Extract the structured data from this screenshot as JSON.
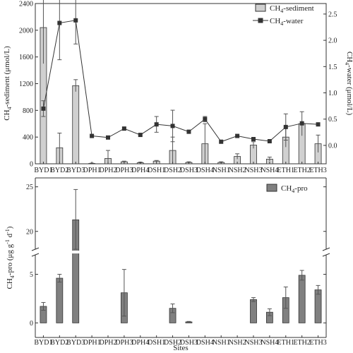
{
  "colors": {
    "sediment_bar": "#d0d0d0",
    "water_line": "#333333",
    "pro_bar": "#808080",
    "axis": "#333333"
  },
  "chart_data": [
    {
      "type": "bar",
      "categories": [
        "BYD1",
        "BYD2",
        "BYD3",
        "DPH1",
        "DPH2",
        "DPH3",
        "DPH4",
        "DSH1",
        "DSH2",
        "DSH3",
        "DSH4",
        "NSH1",
        "NSH2",
        "NSH3",
        "NSH4",
        "ETH1",
        "ETH2",
        "ETH3"
      ],
      "series": [
        {
          "name": "CH4-sediment",
          "legend_main": "CH",
          "legend_sub": "4",
          "legend_rest": "-sediment",
          "axis": "left",
          "kind": "bar",
          "values": [
            2040,
            240,
            1170,
            5,
            80,
            30,
            15,
            40,
            200,
            20,
            300,
            20,
            110,
            280,
            70,
            400,
            600,
            300
          ],
          "errors": [
            540,
            220,
            90,
            5,
            120,
            10,
            10,
            10,
            200,
            10,
            300,
            10,
            40,
            50,
            30,
            150,
            180,
            130
          ]
        },
        {
          "name": "CH4-water",
          "legend_main": "CH",
          "legend_sub": "4",
          "legend_rest": "-water",
          "axis": "right",
          "kind": "line",
          "values": [
            0.7,
            2.33,
            2.38,
            0.18,
            0.15,
            0.32,
            0.2,
            0.4,
            0.37,
            0.26,
            0.5,
            0.07,
            0.18,
            0.12,
            0.08,
            0.35,
            0.42,
            0.4
          ],
          "errors": [
            0.15,
            0.7,
            0.45,
            0,
            0,
            0,
            0,
            0.15,
            0.3,
            0,
            0.05,
            0,
            0,
            0,
            0,
            0.25,
            0,
            0
          ]
        }
      ],
      "ylabel_left": {
        "main": "CH",
        "sub": "4",
        "rest": "-sediment (μmol/L)"
      },
      "ylabel_right": {
        "main": "CH",
        "sub": "4",
        "rest": "-water (μmol/L)"
      },
      "ylim_left": [
        0,
        2400
      ],
      "yticks_left": [
        "0",
        "400",
        "800",
        "1200",
        "1600",
        "2000",
        "2400"
      ],
      "ylim_right": [
        -0.35,
        2.7
      ],
      "yticks_right": [
        "0.0",
        "0.5",
        "1.0",
        "1.5",
        "2.0",
        "2.5"
      ],
      "legend_position": "top-right"
    },
    {
      "type": "bar",
      "categories": [
        "BYD1",
        "BYD2",
        "BYD3",
        "DPH1",
        "DPH2",
        "DPH3",
        "DPH4",
        "DSH1",
        "DSH2",
        "DSH3",
        "DSH4",
        "NSH1",
        "NSH2",
        "NSH3",
        "NSH4",
        "ETH1",
        "ETH2",
        "ETH3"
      ],
      "series": [
        {
          "name": "CH4-pro",
          "legend_main": "CH",
          "legend_sub": "4",
          "legend_rest": "-pro",
          "values": [
            1.7,
            4.6,
            21.3,
            0,
            0,
            3.1,
            0,
            0,
            1.5,
            0.1,
            0,
            0,
            0,
            2.4,
            1.1,
            2.6,
            4.9,
            3.4
          ],
          "errors": [
            0.4,
            0.4,
            3.4,
            0,
            0,
            2.4,
            0,
            0,
            0.45,
            0.05,
            0,
            0,
            0,
            0.2,
            0.35,
            1.1,
            0.5,
            0.45
          ]
        }
      ],
      "ylabel": {
        "main": "CH",
        "sub": "4",
        "mid": "-pro (μg g",
        "sup1": "-1",
        "mid2": " d",
        "sup2": "-1",
        "end": ")"
      },
      "xlabel": "Sites",
      "axis_break": [
        7,
        18
      ],
      "ylim_lower": [
        -1.5,
        7
      ],
      "ylim_upper": [
        18,
        26
      ],
      "yticks": [
        "0",
        "5",
        "20",
        "25"
      ],
      "legend_position": "top-right"
    }
  ]
}
